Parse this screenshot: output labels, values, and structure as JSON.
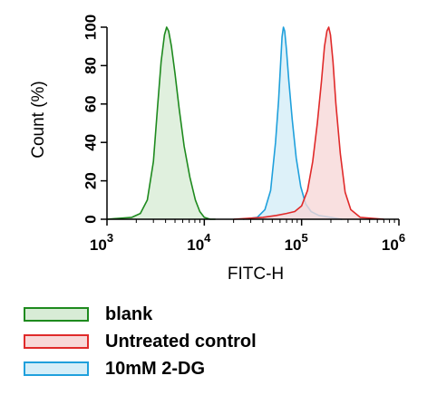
{
  "chart_data": {
    "type": "area",
    "xlabel": "FITC-H",
    "ylabel": "Count (%)",
    "x_scale": "log",
    "xlim": [
      1000,
      1000000
    ],
    "ylim": [
      0,
      100
    ],
    "x_ticks": [
      {
        "value": 1000,
        "base": "10",
        "exp": "3"
      },
      {
        "value": 10000,
        "base": "10",
        "exp": "4"
      },
      {
        "value": 100000,
        "base": "10",
        "exp": "5"
      },
      {
        "value": 1000000,
        "base": "10",
        "exp": "6"
      }
    ],
    "y_ticks": [
      "0",
      "20",
      "40",
      "60",
      "80",
      "100"
    ],
    "grid": false,
    "legend_position": "bottom-left",
    "series": [
      {
        "name": "blank",
        "stroke": "#1e8a1e",
        "fill": "#d8ecd6",
        "x": [
          1000,
          1800,
          2200,
          2600,
          3000,
          3300,
          3600,
          3900,
          4100,
          4300,
          4600,
          5000,
          5500,
          6200,
          7100,
          8100,
          9000,
          10000,
          11500,
          13000
        ],
        "y": [
          0,
          1,
          3,
          10,
          30,
          58,
          82,
          96,
          100,
          98,
          90,
          76,
          58,
          38,
          22,
          10,
          4,
          1,
          0,
          0
        ]
      },
      {
        "name": "10mM 2-DG",
        "stroke": "#1fa0dc",
        "fill": "#d5eef8",
        "x": [
          25000,
          35000,
          42000,
          48000,
          54000,
          58000,
          61000,
          63000,
          65000,
          67000,
          70000,
          74000,
          80000,
          88000,
          98000,
          110000,
          125000,
          150000,
          200000,
          260000
        ],
        "y": [
          0,
          1,
          5,
          15,
          40,
          62,
          82,
          95,
          100,
          98,
          88,
          72,
          52,
          32,
          17,
          8,
          4,
          2,
          1,
          0
        ]
      },
      {
        "name": "Untreated control",
        "stroke": "#e02a2a",
        "fill": "#f8d8d8",
        "x": [
          20000,
          40000,
          55000,
          70000,
          85000,
          100000,
          115000,
          130000,
          145000,
          160000,
          172000,
          182000,
          190000,
          198000,
          210000,
          225000,
          250000,
          280000,
          320000,
          400000,
          700000
        ],
        "y": [
          0,
          1,
          2,
          3,
          4,
          7,
          15,
          30,
          50,
          72,
          90,
          98,
          100,
          96,
          82,
          60,
          34,
          14,
          5,
          1,
          0
        ]
      }
    ],
    "legend": [
      {
        "name": "blank",
        "stroke": "#1e8a1e",
        "fill": "#d8ecd6"
      },
      {
        "name": "Untreated control",
        "stroke": "#e02a2a",
        "fill": "#f8d8d8"
      },
      {
        "name": "10mM 2-DG",
        "stroke": "#1fa0dc",
        "fill": "#d5eef8"
      }
    ]
  }
}
